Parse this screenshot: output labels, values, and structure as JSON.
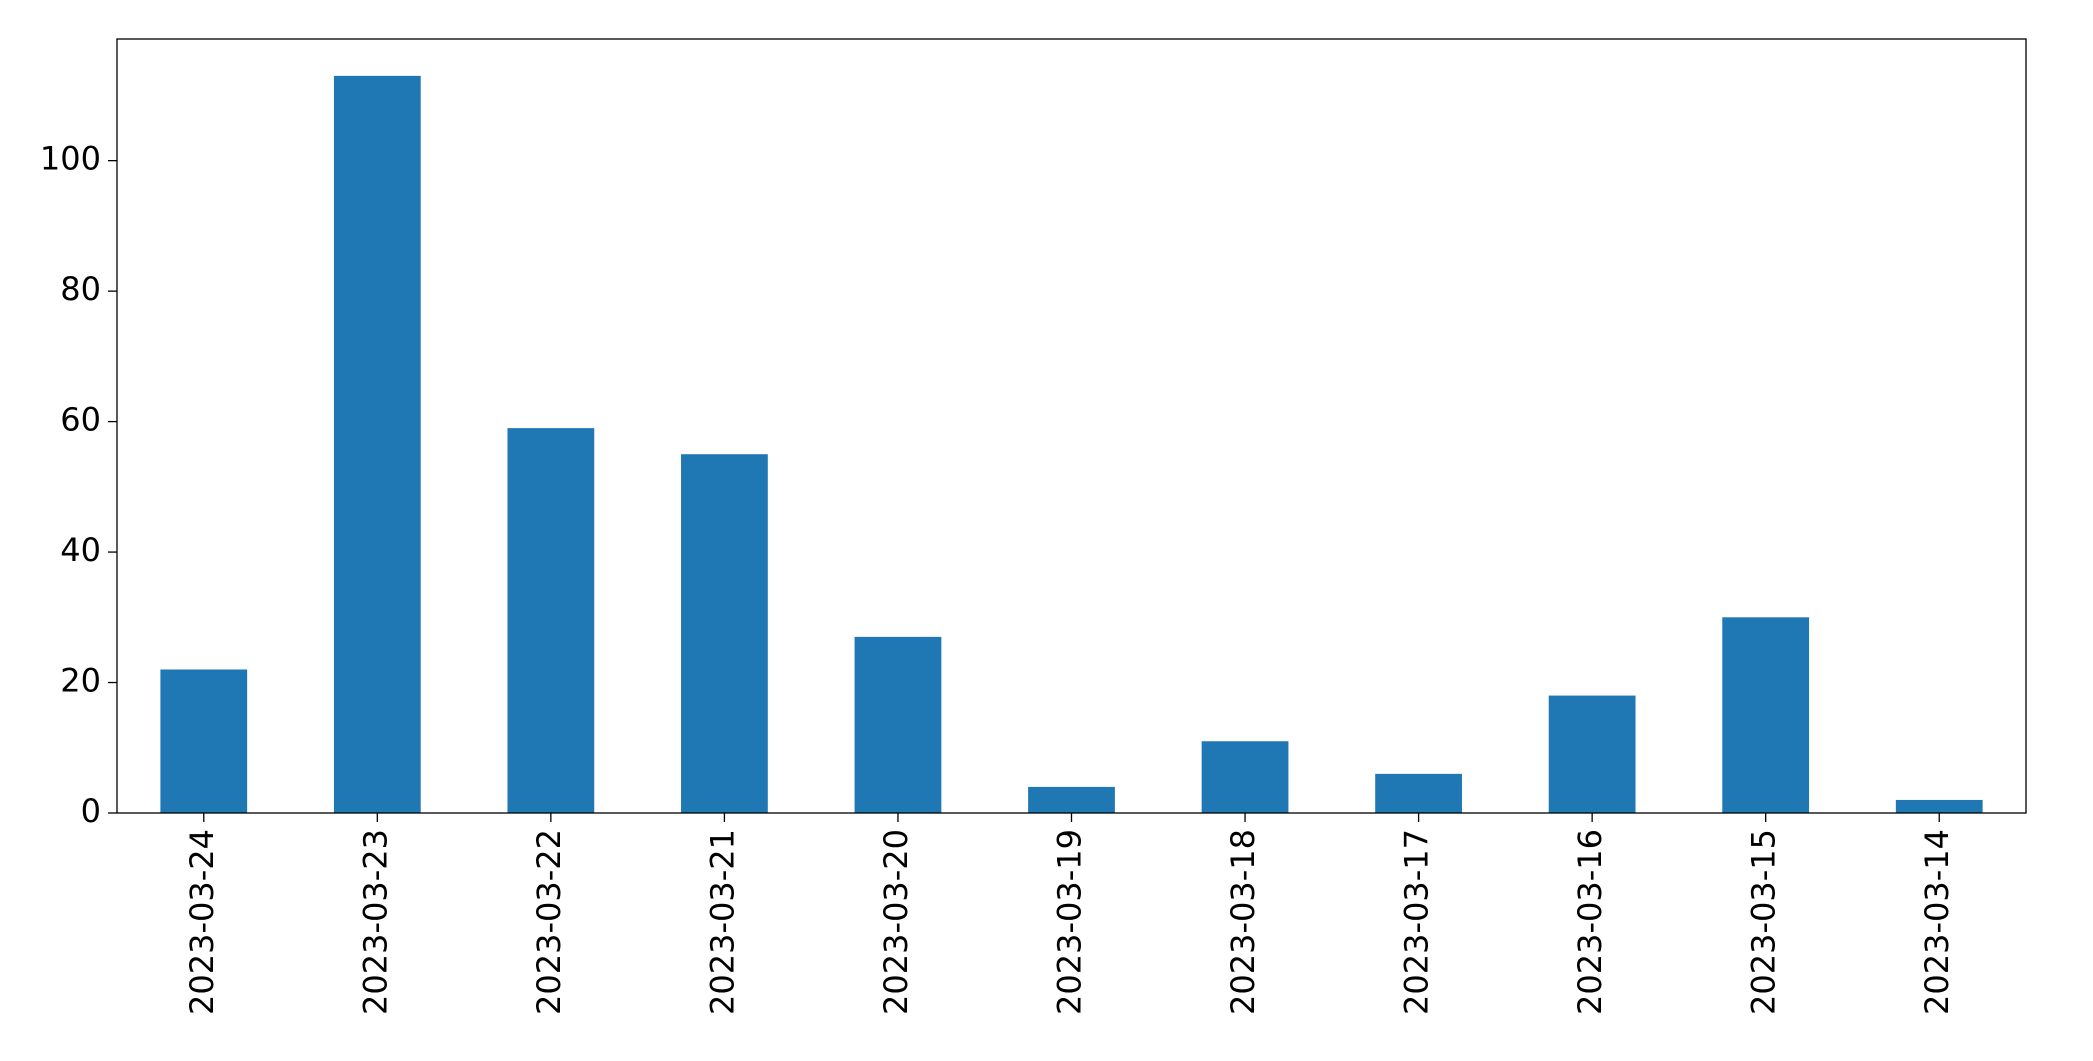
{
  "chart_data": {
    "type": "bar",
    "categories": [
      "2023-03-24",
      "2023-03-23",
      "2023-03-22",
      "2023-03-21",
      "2023-03-20",
      "2023-03-19",
      "2023-03-18",
      "2023-03-17",
      "2023-03-16",
      "2023-03-15",
      "2023-03-14"
    ],
    "values": [
      22,
      113,
      59,
      55,
      27,
      4,
      11,
      6,
      18,
      30,
      2
    ],
    "color": "#1f77b4",
    "ylim": [
      0,
      118.65
    ],
    "yticks": [
      0,
      20,
      40,
      60,
      80,
      100
    ],
    "grid": false
  }
}
